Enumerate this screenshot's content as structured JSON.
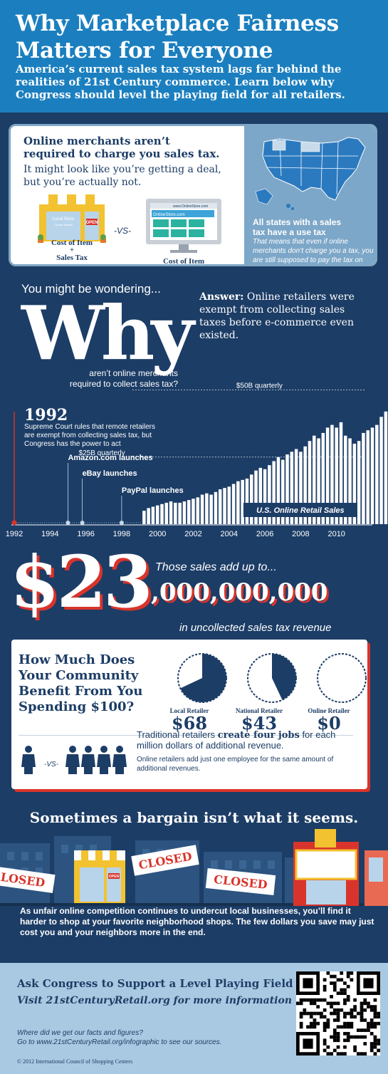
{
  "header": {
    "title_line1": "Why Marketplace Fairness",
    "title_line2": "Matters for Everyone",
    "subtitle": "America’s current sales tax system lags far behind the realities of 21st Century commerce.  Learn below why Congress should level the playing field for all retailers."
  },
  "intro": {
    "heading_line1": "Online merchants aren’t",
    "heading_line2": "required to charge you sales tax.",
    "body": "It might look like you’re getting a deal, but you’re actually not.",
    "local_store_label": "Local Store",
    "local_store_sub": "Corner Market",
    "open_sign": "OPEN",
    "vs_label": "-VS-",
    "browser_url": "www.OnlineStore.com",
    "browser_site": "OnlineStore.com",
    "local_cost": "Cost of Item",
    "local_plus": "+",
    "local_tax": "Sales Tax",
    "online_cost": "Cost of Item",
    "states_heading_line1": "All states with a sales",
    "states_heading_line2": "tax have a use tax",
    "states_body": "That means that even if online merchants don’t charge you a tax, you are still supposed to pay the tax on your purchase."
  },
  "why": {
    "wondering": "You might be wondering...",
    "big_word": "Why",
    "question_line1": "aren’t online merchants",
    "question_line2": "required to collect sales tax?",
    "answer_label": "Answer:",
    "answer_text": " Online retailers were exempt from collecting sales taxes before e-commerce even existed."
  },
  "chart_data": {
    "type": "bar",
    "title": "U.S. Online Retail Sales",
    "x_tick_labels": [
      "1992",
      "1994",
      "1996",
      "1998",
      "2000",
      "2002",
      "2004",
      "2006",
      "2008",
      "2010"
    ],
    "x_range": [
      1992,
      2012
    ],
    "series_start": 1999.25,
    "quarter_step": 0.25,
    "values_billions": [
      5,
      6,
      6.5,
      7,
      7.5,
      8,
      8.5,
      8,
      8,
      8.5,
      9,
      9.5,
      10,
      11,
      11.5,
      11,
      12,
      13,
      13.5,
      14,
      15,
      16,
      16.5,
      17,
      18.5,
      20,
      21,
      20.5,
      22,
      23.5,
      25,
      24,
      26,
      27,
      28,
      27,
      29,
      31,
      33,
      32,
      34,
      36,
      37,
      36,
      38,
      33,
      32,
      30,
      31,
      34,
      35,
      36,
      37,
      40,
      42,
      41,
      46,
      52,
      45,
      46,
      47,
      55
    ],
    "ylim": [
      0,
      60
    ],
    "reference_lines": [
      {
        "label": "$25B quarterly",
        "value": 25
      },
      {
        "label": "$50B quarterly",
        "value": 50
      }
    ],
    "events": [
      {
        "year": 1992,
        "label": "1992",
        "text": "Supreme Court rules that remote retailers are exempt from collecting sales tax, but Congress has the power to act"
      },
      {
        "year": 1995,
        "label": "Amazon.com launches"
      },
      {
        "year": 1995.8,
        "label": "eBay launches"
      },
      {
        "year": 1998,
        "label": "PayPal launches"
      }
    ]
  },
  "revenue": {
    "big": "$23",
    "rest": ",000,000,000",
    "lead": "Those sales add up to...",
    "tail": "in uncollected sales tax revenue"
  },
  "community": {
    "heading_line1": "How Much Does",
    "heading_line2": "Your Community",
    "heading_line3": "Benefit From You",
    "heading_line4": "Spending $100?",
    "pies": [
      {
        "label": "Local Retailer",
        "value": "$68",
        "fraction": 0.68
      },
      {
        "label": "National Retailer",
        "value": "$43",
        "fraction": 0.43
      },
      {
        "label": "Online Retailer",
        "value": "$0",
        "fraction": 0
      }
    ],
    "vs_label": "-VS-",
    "jobs_pre": "Traditional retailers ",
    "jobs_bold": "create four jobs",
    "jobs_post": " for each million dollars of additional revenue.",
    "jobs_note": "Online retailers add just one employee for the same amount of additional revenues."
  },
  "bargain": {
    "heading": "Sometimes a bargain isn’t what it seems.",
    "closed_left": "LOSED",
    "closed_mid": "CLOSED",
    "closed_right": "CLOSED",
    "open_sign": "OPEN",
    "body": "As unfair online competition continues to undercut local businesses, you’ll find it harder to shop at your favorite neighborhood shops.  The few dollars you save may just cost you and your neighbors more in the end."
  },
  "footer": {
    "heading": "Ask Congress to Support a Level Playing Field",
    "visit": "Visit 21stCenturyRetail.org for more information",
    "question": "Where did we get our facts and figures?",
    "sources": "Go to www.21stCenturyRetail.org/infographic to see our sources.",
    "copyright": "© 2012 International Council of Shopping Centers"
  },
  "colors": {
    "navy": "#1c3d66",
    "header_blue": "#1b7fbf",
    "light_blue": "#7da7c8",
    "red": "#d9342b",
    "footer_blue": "#a9c9e2",
    "awning_yellow": "#f2c230"
  }
}
